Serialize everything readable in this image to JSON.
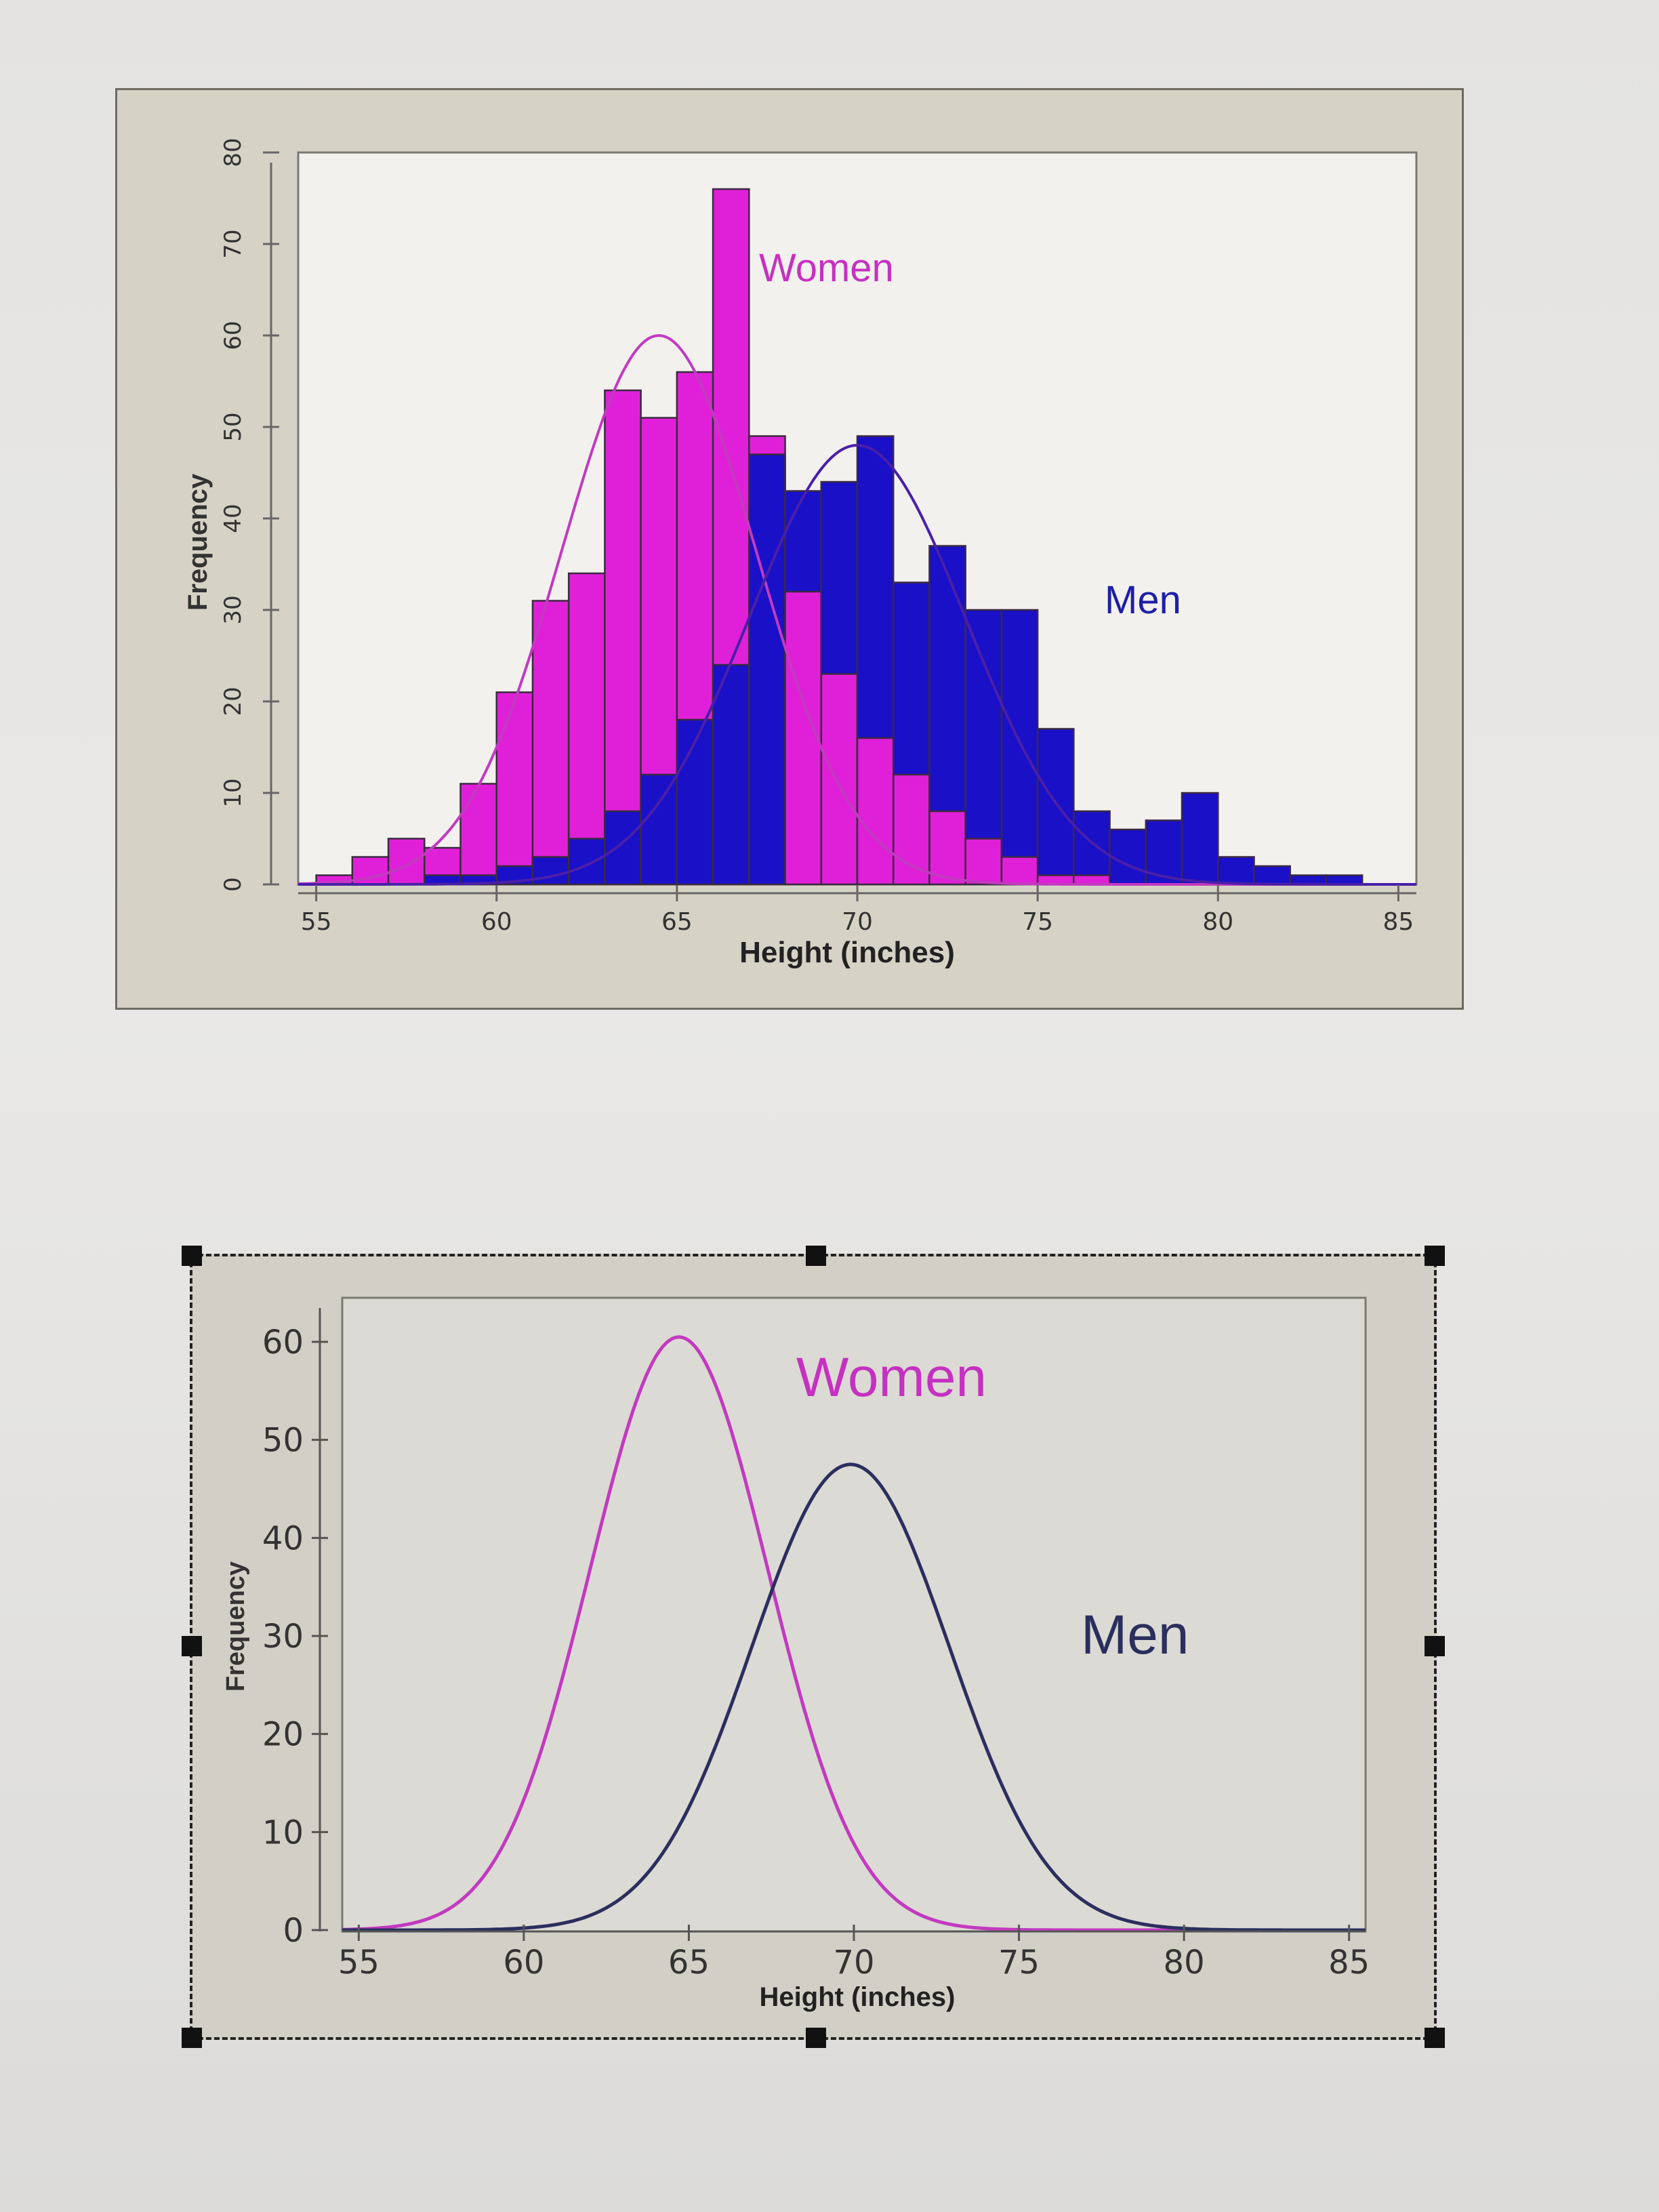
{
  "chart_data": [
    {
      "type": "bar",
      "xlabel": "Height (inches)",
      "ylabel": "Frequency",
      "xlim": [
        54.5,
        85.5
      ],
      "ylim": [
        0,
        80
      ],
      "xticks": [
        "55",
        "60",
        "65",
        "70",
        "75",
        "80",
        "85"
      ],
      "yticks": [
        "0",
        "10",
        "20",
        "30",
        "40",
        "50",
        "60",
        "70",
        "80"
      ],
      "bin_width": 1,
      "annotations": [
        "Women",
        "Men"
      ],
      "colors": {
        "women": "#e020d8",
        "men": "#1a10c8",
        "women_curve": "#c23ac0",
        "men_curve": "#4a1fa8"
      },
      "series": [
        {
          "name": "Women",
          "bin_starts": [
            55,
            56,
            57,
            58,
            59,
            60,
            61,
            62,
            63,
            64,
            65,
            66,
            67,
            68,
            69,
            70,
            71,
            72,
            73,
            74,
            75,
            76
          ],
          "values": [
            1,
            3,
            5,
            4,
            11,
            21,
            31,
            34,
            54,
            51,
            56,
            76,
            49,
            32,
            23,
            16,
            12,
            8,
            5,
            3,
            1,
            1
          ]
        },
        {
          "name": "Men",
          "bin_starts": [
            58,
            59,
            60,
            61,
            62,
            63,
            64,
            65,
            66,
            67,
            68,
            69,
            70,
            71,
            72,
            73,
            74,
            75,
            76,
            77,
            78,
            79,
            80,
            81,
            82,
            83
          ],
          "values": [
            1,
            1,
            2,
            3,
            5,
            8,
            12,
            18,
            24,
            47,
            43,
            44,
            49,
            33,
            37,
            30,
            30,
            17,
            8,
            6,
            7,
            10,
            3,
            2,
            1,
            1
          ]
        }
      ],
      "curves": [
        {
          "name": "Women",
          "mean": 64.5,
          "sd": 2.7,
          "peak": 60
        },
        {
          "name": "Men",
          "mean": 70,
          "sd": 3.0,
          "peak": 48
        }
      ]
    },
    {
      "type": "line",
      "xlabel": "Height (inches)",
      "ylabel": "Frequency",
      "xlim": [
        54.5,
        85.5
      ],
      "ylim": [
        0,
        60
      ],
      "xticks": [
        "55",
        "60",
        "65",
        "70",
        "75",
        "80",
        "85"
      ],
      "yticks": [
        "0",
        "10",
        "20",
        "30",
        "40",
        "50",
        "60"
      ],
      "annotations": [
        "Women",
        "Men"
      ],
      "colors": {
        "women": "#c23ac0",
        "men": "#2b2f5e"
      },
      "curves": [
        {
          "name": "Women",
          "mean": 64.7,
          "sd": 2.7,
          "peak": 60.5
        },
        {
          "name": "Men",
          "mean": 69.9,
          "sd": 3.0,
          "peak": 47.5
        }
      ]
    }
  ]
}
